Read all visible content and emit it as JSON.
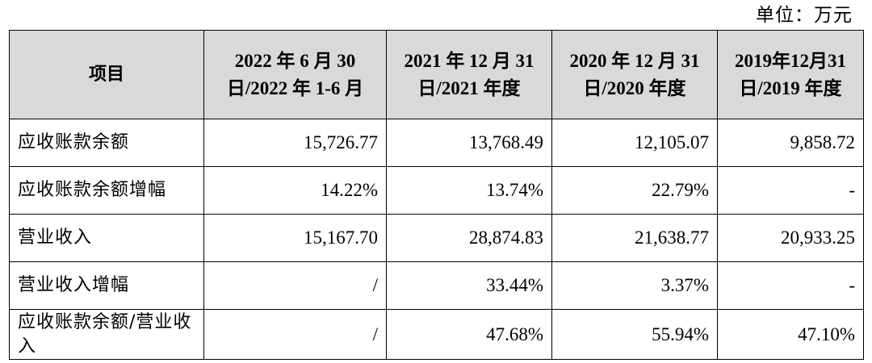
{
  "unit_label": "单位：万元",
  "table": {
    "header": [
      "项目",
      "2022 年 6 月 30 日/2022 年 1-6 月",
      "2021 年 12 月 31 日/2021 年度",
      "2020 年 12 月 31 日/2020 年度",
      "2019年12月31日/2019 年度"
    ],
    "rows": [
      [
        "应收账款余额",
        "15,726.77",
        "13,768.49",
        "12,105.07",
        "9,858.72"
      ],
      [
        "应收账款余额增幅",
        "14.22%",
        "13.74%",
        "22.79%",
        "-"
      ],
      [
        "营业收入",
        "15,167.70",
        "28,874.83",
        "21,638.77",
        "20,933.25"
      ],
      [
        "营业收入增幅",
        "/",
        "33.44%",
        "3.37%",
        "-"
      ],
      [
        "应收账款余额/营业收入",
        "/",
        "47.68%",
        "55.94%",
        "47.10%"
      ]
    ]
  }
}
